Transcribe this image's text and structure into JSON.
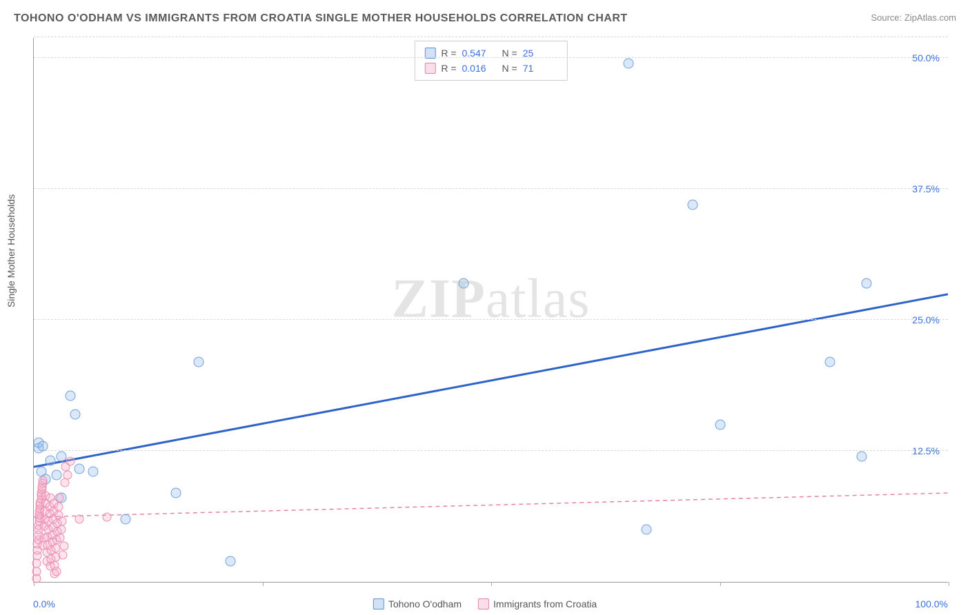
{
  "title": "TOHONO O'ODHAM VS IMMIGRANTS FROM CROATIA SINGLE MOTHER HOUSEHOLDS CORRELATION CHART",
  "source": "Source: ZipAtlas.com",
  "watermark_a": "ZIP",
  "watermark_b": "atlas",
  "chart": {
    "type": "scatter",
    "y_axis_label": "Single Mother Households",
    "xlim": [
      0,
      100
    ],
    "ylim": [
      0,
      52
    ],
    "x_ticks": [
      0,
      25,
      50,
      75,
      100
    ],
    "x_tick_labels_shown": {
      "min": "0.0%",
      "max": "100.0%"
    },
    "y_ticks": [
      12.5,
      25.0,
      37.5,
      50.0
    ],
    "y_tick_labels": [
      "12.5%",
      "25.0%",
      "37.5%",
      "50.0%"
    ],
    "background_color": "#ffffff",
    "grid_color": "#d8d8d8",
    "axis_color": "#999999",
    "tick_label_color": "#3a6fd8",
    "stats": [
      {
        "swatch": "blue",
        "r_label": "R =",
        "r": "0.547",
        "n_label": "N =",
        "n": "25"
      },
      {
        "swatch": "pink",
        "r_label": "R =",
        "r": "0.016",
        "n_label": "N =",
        "n": "71"
      }
    ],
    "legend": [
      {
        "swatch": "blue",
        "label": "Tohono O'odham"
      },
      {
        "swatch": "pink",
        "label": "Immigrants from Croatia"
      }
    ],
    "series": [
      {
        "name": "tohono",
        "color_fill": "rgba(150,190,240,0.35)",
        "color_stroke": "#6f9fd8",
        "marker_size": 15,
        "trend": {
          "x1": 0,
          "y1": 11.0,
          "x2": 100,
          "y2": 27.5,
          "stroke": "#2d62c9",
          "width": 3,
          "dash": "none"
        },
        "points": [
          [
            0.5,
            12.8
          ],
          [
            0.5,
            13.3
          ],
          [
            0.8,
            10.5
          ],
          [
            1.0,
            13.0
          ],
          [
            1.3,
            9.8
          ],
          [
            1.8,
            11.6
          ],
          [
            2.5,
            10.2
          ],
          [
            3.0,
            8.0
          ],
          [
            3.0,
            12.0
          ],
          [
            4.0,
            17.8
          ],
          [
            4.5,
            16.0
          ],
          [
            5.0,
            10.8
          ],
          [
            6.5,
            10.5
          ],
          [
            10.0,
            6.0
          ],
          [
            15.5,
            8.5
          ],
          [
            18.0,
            21.0
          ],
          [
            21.5,
            2.0
          ],
          [
            47.0,
            28.5
          ],
          [
            65.0,
            49.5
          ],
          [
            67.0,
            5.0
          ],
          [
            72.0,
            36.0
          ],
          [
            75.0,
            15.0
          ],
          [
            87.0,
            21.0
          ],
          [
            90.5,
            12.0
          ],
          [
            91.0,
            28.5
          ]
        ]
      },
      {
        "name": "croatia",
        "color_fill": "rgba(248,175,200,0.35)",
        "color_stroke": "#e88fb0",
        "marker_size": 13,
        "trend": {
          "x1": 0,
          "y1": 6.2,
          "x2": 100,
          "y2": 8.5,
          "stroke": "#e77fa8",
          "width": 1.5,
          "dash": "6,5"
        },
        "points": [
          [
            0.3,
            0.3
          ],
          [
            0.3,
            1.0
          ],
          [
            0.3,
            1.8
          ],
          [
            0.4,
            2.5
          ],
          [
            0.4,
            3.0
          ],
          [
            0.4,
            3.6
          ],
          [
            0.5,
            4.0
          ],
          [
            0.5,
            4.5
          ],
          [
            0.5,
            5.0
          ],
          [
            0.5,
            5.4
          ],
          [
            0.6,
            5.8
          ],
          [
            0.6,
            6.1
          ],
          [
            0.6,
            6.4
          ],
          [
            0.6,
            6.7
          ],
          [
            0.7,
            7.0
          ],
          [
            0.7,
            7.3
          ],
          [
            0.7,
            7.6
          ],
          [
            0.8,
            7.9
          ],
          [
            0.8,
            8.2
          ],
          [
            0.8,
            8.5
          ],
          [
            0.9,
            8.8
          ],
          [
            0.9,
            9.1
          ],
          [
            1.0,
            9.4
          ],
          [
            1.0,
            9.7
          ],
          [
            1.0,
            3.5
          ],
          [
            1.1,
            4.2
          ],
          [
            1.1,
            5.3
          ],
          [
            1.2,
            6.0
          ],
          [
            1.2,
            6.8
          ],
          [
            1.3,
            7.5
          ],
          [
            1.3,
            8.2
          ],
          [
            1.4,
            2.0
          ],
          [
            1.4,
            2.8
          ],
          [
            1.5,
            3.5
          ],
          [
            1.5,
            4.3
          ],
          [
            1.6,
            5.0
          ],
          [
            1.6,
            5.8
          ],
          [
            1.7,
            6.5
          ],
          [
            1.7,
            7.2
          ],
          [
            1.8,
            8.0
          ],
          [
            1.8,
            1.5
          ],
          [
            1.9,
            2.2
          ],
          [
            1.9,
            3.0
          ],
          [
            2.0,
            3.8
          ],
          [
            2.0,
            4.5
          ],
          [
            2.1,
            5.2
          ],
          [
            2.1,
            6.0
          ],
          [
            2.2,
            6.8
          ],
          [
            2.2,
            7.5
          ],
          [
            2.3,
            0.8
          ],
          [
            2.3,
            1.6
          ],
          [
            2.4,
            2.4
          ],
          [
            2.4,
            3.2
          ],
          [
            2.5,
            1.0
          ],
          [
            2.5,
            4.0
          ],
          [
            2.6,
            4.8
          ],
          [
            2.6,
            5.6
          ],
          [
            2.7,
            6.4
          ],
          [
            2.7,
            7.2
          ],
          [
            2.8,
            8.0
          ],
          [
            2.9,
            4.2
          ],
          [
            3.0,
            5.0
          ],
          [
            3.1,
            5.8
          ],
          [
            3.2,
            2.6
          ],
          [
            3.3,
            3.4
          ],
          [
            3.4,
            9.5
          ],
          [
            3.5,
            11.0
          ],
          [
            3.7,
            10.2
          ],
          [
            4.0,
            11.5
          ],
          [
            5.0,
            6.0
          ],
          [
            8.0,
            6.2
          ]
        ]
      }
    ]
  }
}
